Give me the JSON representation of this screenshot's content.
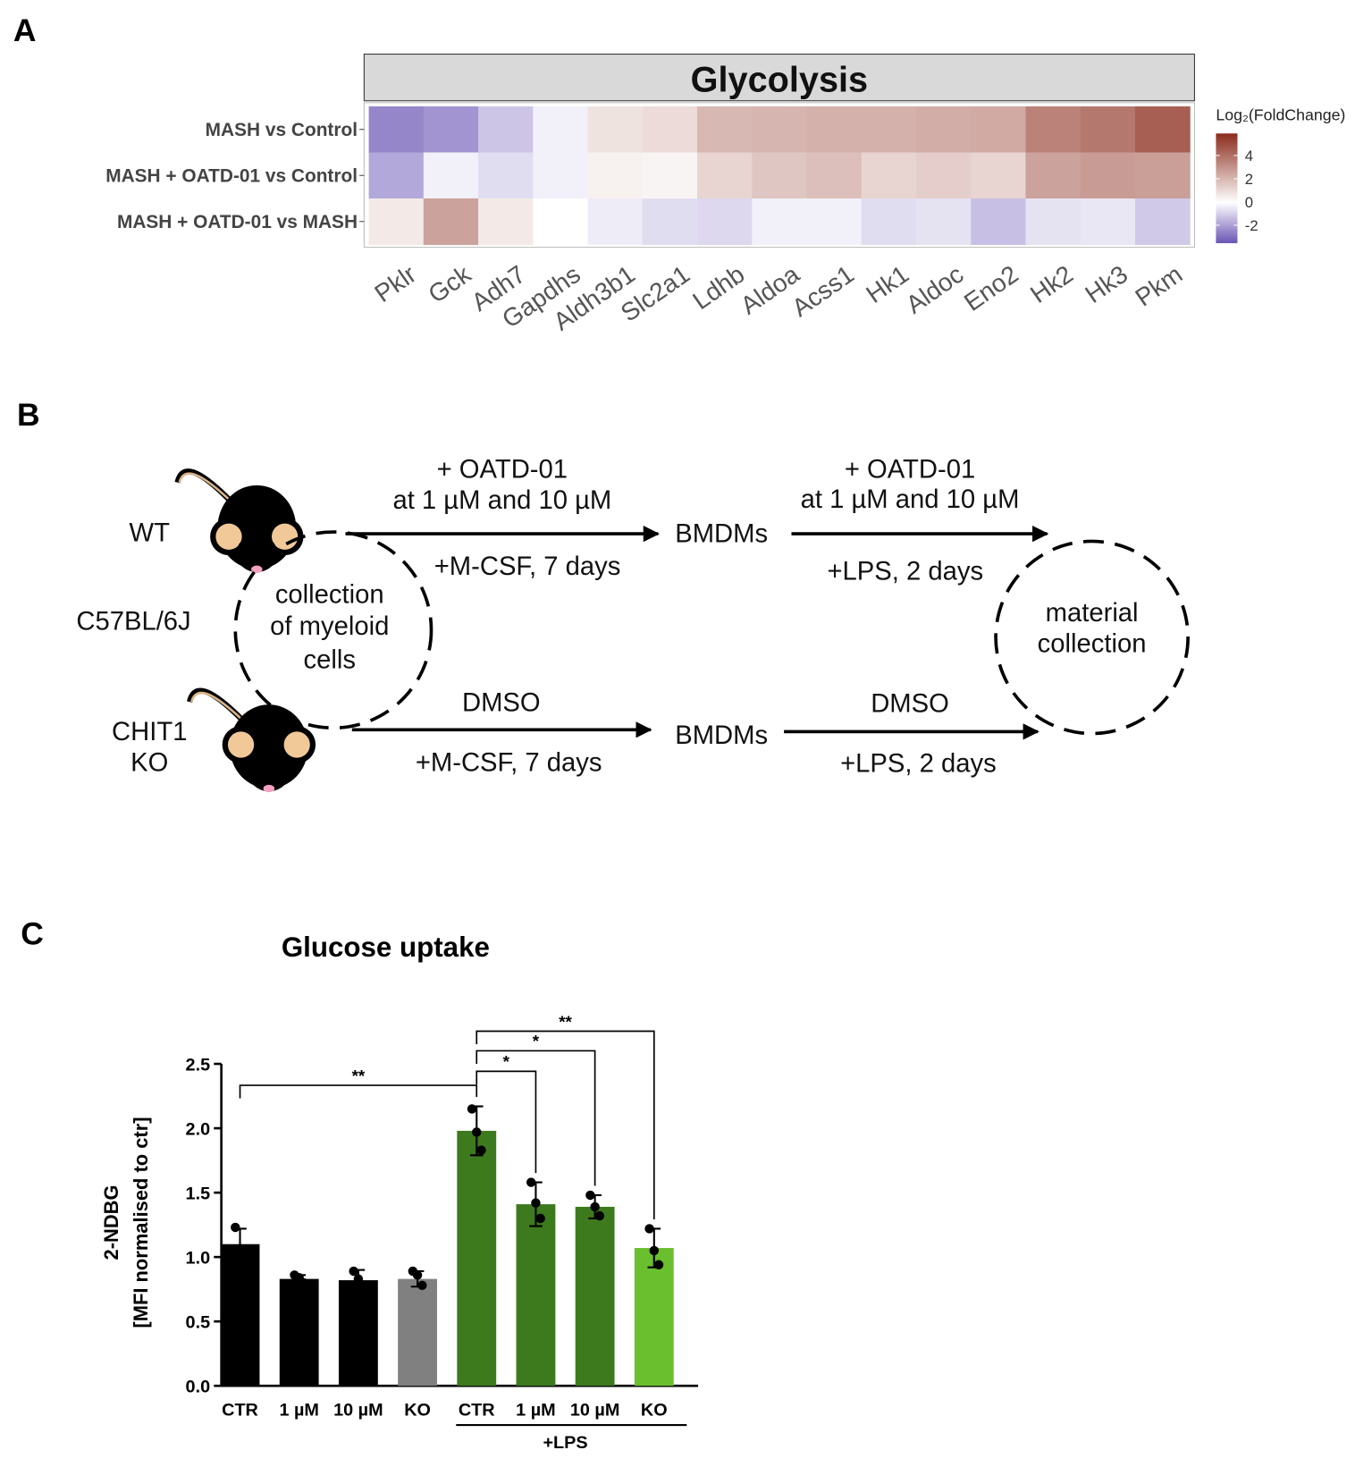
{
  "panel_labels": [
    "A",
    "B",
    "C"
  ],
  "chart_data": [
    {
      "type": "heatmap",
      "title": "Glycolysis",
      "rows": [
        "MASH vs Control",
        "MASH + OATD-01 vs Control",
        "MASH + OATD-01 vs MASH"
      ],
      "columns": [
        "Pklr",
        "Gck",
        "Adh7",
        "Gapdhs",
        "Aldh3b1",
        "Slc2a1",
        "Ldhb",
        "Aldoa",
        "Acss1",
        "Hk1",
        "Aldoc",
        "Eno2",
        "Hk2",
        "Hk3",
        "Pkm"
      ],
      "values": [
        [
          -2.5,
          -2.2,
          -1.2,
          -0.3,
          0.8,
          1.0,
          2.0,
          2.1,
          2.2,
          2.2,
          2.3,
          2.4,
          3.5,
          3.8,
          4.5
        ],
        [
          -1.8,
          -0.3,
          -0.7,
          -0.3,
          0.4,
          0.3,
          1.2,
          1.6,
          1.8,
          1.2,
          1.4,
          1.2,
          2.6,
          2.8,
          2.7
        ],
        [
          0.6,
          2.6,
          0.6,
          0.0,
          -0.4,
          -0.7,
          -0.8,
          -0.3,
          -0.3,
          -0.7,
          -0.6,
          -1.3,
          -0.6,
          -0.5,
          -1.1
        ]
      ],
      "colorbar_title": "Log₂(FoldChange)",
      "clim": [
        -3.5,
        5.9
      ],
      "cticks": [
        -2,
        0,
        2,
        4
      ],
      "colors": {
        "low": "#6a55b5",
        "mid": "#ffffff",
        "high": "#8c2d1e"
      }
    },
    {
      "type": "bar",
      "title": "Glucose uptake",
      "ylabel": [
        "2-NDBG",
        "[MFI normalised to ctr]"
      ],
      "categories": [
        "CTR",
        "1 µM",
        "10 µM",
        "KO",
        "CTR",
        "1 µM",
        "10 µM",
        "KO"
      ],
      "group_label": "+LPS",
      "values": [
        1.1,
        0.83,
        0.82,
        0.83,
        1.98,
        1.41,
        1.39,
        1.07
      ],
      "errors": [
        0.12,
        0.03,
        0.08,
        0.06,
        0.19,
        0.17,
        0.09,
        0.15
      ],
      "points": [
        [
          1.23,
          1.04,
          1.03
        ],
        [
          0.86,
          0.84,
          0.8
        ],
        [
          0.89,
          0.83,
          0.75
        ],
        [
          0.89,
          0.86,
          0.78
        ],
        [
          2.15,
          1.97,
          1.83
        ],
        [
          1.58,
          1.42,
          1.3
        ],
        [
          1.48,
          1.39,
          1.32
        ],
        [
          1.22,
          1.05,
          0.94
        ]
      ],
      "colors": [
        "#000000",
        "#000000",
        "#000000",
        "#808080",
        "#3d7a1e",
        "#3d7a1e",
        "#3d7a1e",
        "#6abf2e"
      ],
      "ylim": [
        0,
        2.5
      ],
      "yticks": [
        {
          "value": 0,
          "label": "0.0"
        },
        0.5,
        {
          "value": 1,
          "label": "1.0"
        },
        1.5,
        {
          "value": 2,
          "label": "2.0"
        },
        2.5
      ],
      "annotations": [
        {
          "from": 0,
          "to": 4,
          "label": "**"
        },
        {
          "from": 4,
          "to": 5,
          "label": "*"
        },
        {
          "from": 4,
          "to": 6,
          "label": "*"
        },
        {
          "from": 4,
          "to": 7,
          "label": "**"
        }
      ]
    }
  ],
  "diagram": {
    "wt": "WT",
    "background": "C57BL/6J",
    "ko": [
      "CHIT1",
      "KO"
    ],
    "collection": [
      "collection",
      "of myeloid",
      "cells"
    ],
    "material": [
      "material",
      "collection"
    ],
    "top_step_1": {
      "above": [
        "+ OATD-01",
        "at 1 µM and 10 µM"
      ],
      "below": "+M-CSF, 7 days"
    },
    "top_node": "BMDMs",
    "top_step_2": {
      "above": [
        "+ OATD-01",
        "at 1 µM and 10 µM"
      ],
      "below": "+LPS, 2 days"
    },
    "bottom_step_1": {
      "above": "DMSO",
      "below": "+M-CSF, 7 days"
    },
    "bottom_node": "BMDMs",
    "bottom_step_2": {
      "above": "DMSO",
      "below": "+LPS, 2 days"
    }
  }
}
